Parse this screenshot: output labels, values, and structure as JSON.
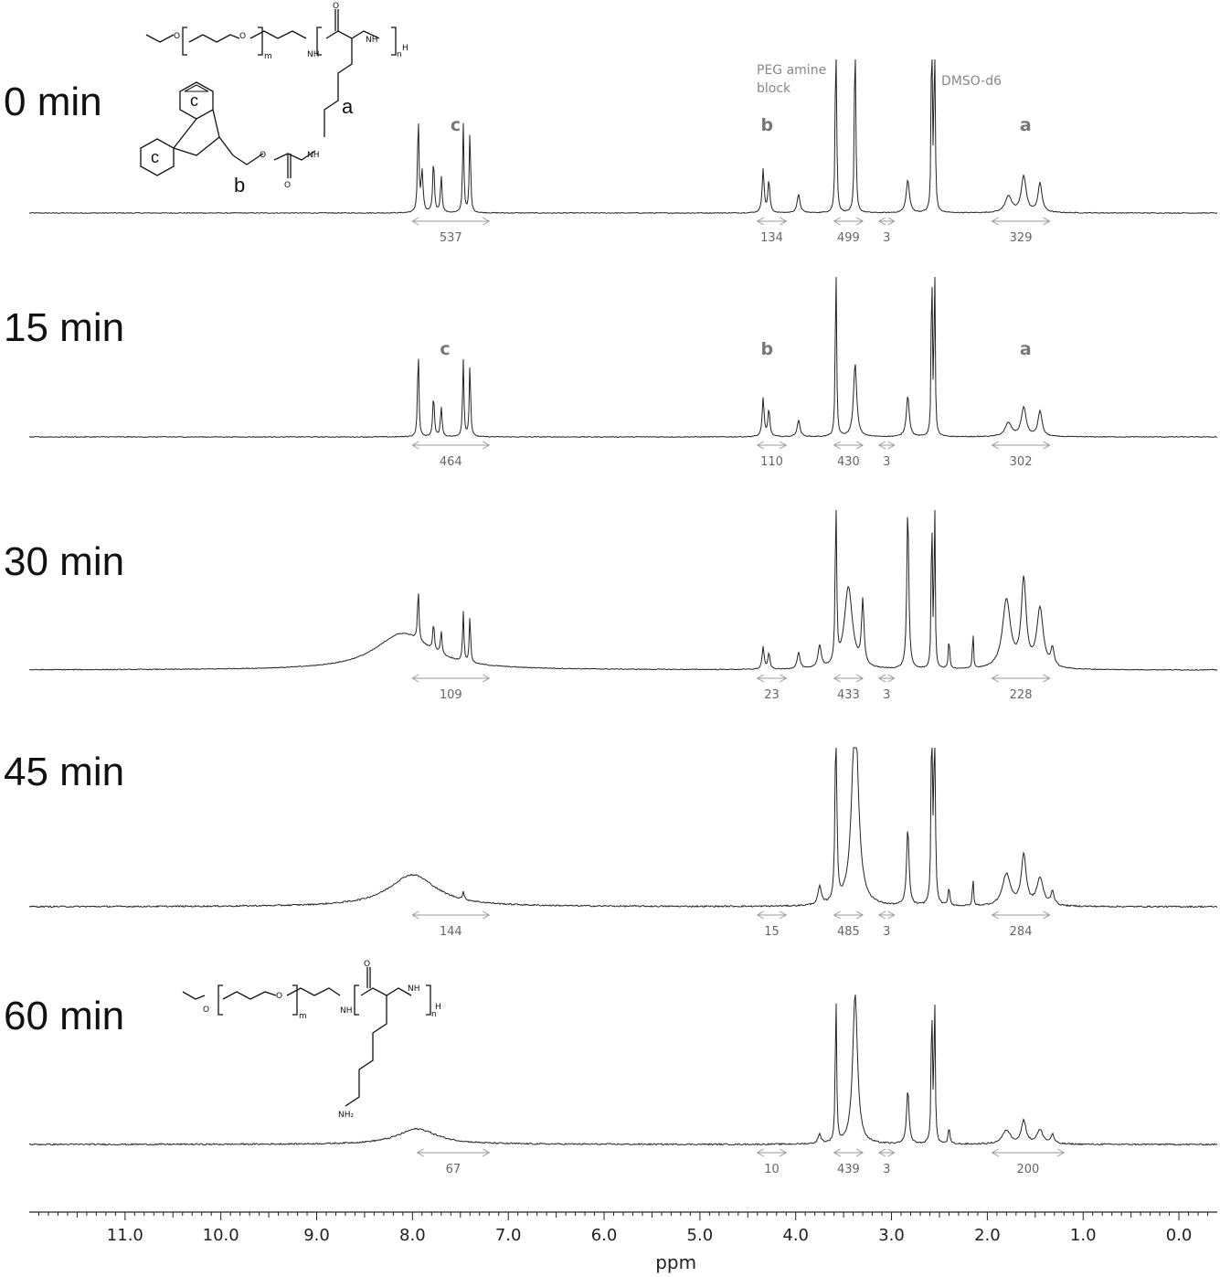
{
  "chart_data": {
    "type": "line",
    "xlabel": "ppm",
    "xlim": [
      12.0,
      -0.4
    ],
    "x_ticks": [
      "11.0",
      "10.0",
      "9.0",
      "8.0",
      "7.0",
      "6.0",
      "5.0",
      "4.0",
      "3.0",
      "2.0",
      "1.0",
      "0.0"
    ],
    "x_tick_values": [
      11,
      10,
      9,
      8,
      7,
      6,
      5,
      4,
      3,
      2,
      1,
      0
    ],
    "annotations": {
      "peg": "PEG amine",
      "peg2": "block",
      "dmso": "DMSO-d6"
    },
    "series": [
      {
        "name": "0 min",
        "peak_labels": [
          {
            "text": "c",
            "ppm": 7.55
          },
          {
            "text": "b",
            "ppm": 4.3
          },
          {
            "text": "a",
            "ppm": 1.6
          }
        ],
        "peaks": [
          [
            7.94,
            110,
            0.008
          ],
          [
            7.9,
            45,
            0.012
          ],
          [
            7.78,
            58,
            0.01
          ],
          [
            7.7,
            40,
            0.01
          ],
          [
            7.47,
            98,
            0.008
          ],
          [
            7.4,
            92,
            0.008
          ],
          [
            4.34,
            48,
            0.012
          ],
          [
            4.28,
            35,
            0.012
          ],
          [
            3.97,
            20,
            0.018
          ],
          [
            3.58,
            260,
            0.007
          ],
          [
            3.38,
            260,
            0.007
          ],
          [
            2.83,
            36,
            0.02
          ],
          [
            2.58,
            260,
            0.006
          ],
          [
            2.55,
            260,
            0.006
          ],
          [
            1.78,
            18,
            0.04
          ],
          [
            1.62,
            40,
            0.03
          ],
          [
            1.45,
            32,
            0.025
          ]
        ],
        "integrals": [
          {
            "from": 8.0,
            "to": 7.2,
            "label": "537"
          },
          {
            "from": 4.4,
            "to": 4.1,
            "label": "134"
          },
          {
            "from": 3.6,
            "to": 3.3,
            "label": "499"
          },
          {
            "from": 3.13,
            "to": 2.97,
            "label": "3"
          },
          {
            "from": 1.95,
            "to": 1.35,
            "label": "329"
          }
        ]
      },
      {
        "name": "15 min",
        "peak_labels": [
          {
            "text": "c",
            "ppm": 7.66
          },
          {
            "text": "b",
            "ppm": 4.3
          },
          {
            "text": "a",
            "ppm": 1.6
          }
        ],
        "peaks": [
          [
            7.94,
            100,
            0.008
          ],
          [
            7.78,
            45,
            0.01
          ],
          [
            7.7,
            33,
            0.01
          ],
          [
            7.47,
            85,
            0.008
          ],
          [
            7.4,
            82,
            0.008
          ],
          [
            4.34,
            42,
            0.012
          ],
          [
            4.28,
            30,
            0.012
          ],
          [
            3.97,
            18,
            0.018
          ],
          [
            3.58,
            220,
            0.007
          ],
          [
            3.38,
            80,
            0.02
          ],
          [
            2.83,
            45,
            0.018
          ],
          [
            2.58,
            220,
            0.006
          ],
          [
            2.55,
            220,
            0.006
          ],
          [
            1.78,
            15,
            0.04
          ],
          [
            1.62,
            32,
            0.03
          ],
          [
            1.45,
            28,
            0.025
          ]
        ],
        "integrals": [
          {
            "from": 8.0,
            "to": 7.2,
            "label": "464"
          },
          {
            "from": 4.4,
            "to": 4.1,
            "label": "110"
          },
          {
            "from": 3.6,
            "to": 3.3,
            "label": "430"
          },
          {
            "from": 3.13,
            "to": 2.97,
            "label": "3"
          },
          {
            "from": 1.95,
            "to": 1.35,
            "label": "302"
          }
        ]
      },
      {
        "name": "30 min",
        "peak_labels": [],
        "peaks": [
          [
            8.1,
            40,
            0.35
          ],
          [
            7.94,
            60,
            0.008
          ],
          [
            7.78,
            30,
            0.01
          ],
          [
            7.7,
            25,
            0.01
          ],
          [
            7.47,
            55,
            0.008
          ],
          [
            7.4,
            52,
            0.008
          ],
          [
            4.34,
            25,
            0.012
          ],
          [
            4.28,
            18,
            0.012
          ],
          [
            3.97,
            18,
            0.018
          ],
          [
            3.75,
            25,
            0.02
          ],
          [
            3.58,
            200,
            0.008
          ],
          [
            3.45,
            90,
            0.05
          ],
          [
            3.3,
            70,
            0.015
          ],
          [
            2.83,
            180,
            0.012
          ],
          [
            2.58,
            200,
            0.006
          ],
          [
            2.55,
            200,
            0.006
          ],
          [
            2.4,
            35,
            0.008
          ],
          [
            2.15,
            45,
            0.006
          ],
          [
            1.8,
            75,
            0.05
          ],
          [
            1.62,
            95,
            0.03
          ],
          [
            1.45,
            65,
            0.04
          ],
          [
            1.32,
            20,
            0.02
          ]
        ],
        "integrals": [
          {
            "from": 8.0,
            "to": 7.2,
            "label": "109"
          },
          {
            "from": 4.4,
            "to": 4.1,
            "label": "23"
          },
          {
            "from": 3.6,
            "to": 3.3,
            "label": "433"
          },
          {
            "from": 3.13,
            "to": 2.97,
            "label": "3"
          },
          {
            "from": 1.95,
            "to": 1.35,
            "label": "228"
          }
        ]
      },
      {
        "name": "45 min",
        "peak_labels": [],
        "peaks": [
          [
            8.0,
            35,
            0.3
          ],
          [
            7.47,
            8,
            0.01
          ],
          [
            3.75,
            20,
            0.02
          ],
          [
            3.58,
            220,
            0.01
          ],
          [
            3.38,
            220,
            0.04
          ],
          [
            2.83,
            85,
            0.015
          ],
          [
            2.58,
            220,
            0.008
          ],
          [
            2.55,
            220,
            0.008
          ],
          [
            2.4,
            20,
            0.01
          ],
          [
            2.15,
            35,
            0.006
          ],
          [
            1.8,
            35,
            0.05
          ],
          [
            1.62,
            55,
            0.03
          ],
          [
            1.45,
            30,
            0.04
          ],
          [
            1.32,
            15,
            0.02
          ]
        ],
        "integrals": [
          {
            "from": 8.0,
            "to": 7.2,
            "label": "144"
          },
          {
            "from": 4.4,
            "to": 4.1,
            "label": "15"
          },
          {
            "from": 3.6,
            "to": 3.3,
            "label": "485"
          },
          {
            "from": 3.13,
            "to": 2.97,
            "label": "3"
          },
          {
            "from": 1.95,
            "to": 1.35,
            "label": "284"
          }
        ]
      },
      {
        "name": "60 min",
        "peak_labels": [],
        "peaks": [
          [
            7.95,
            17,
            0.25
          ],
          [
            3.75,
            10,
            0.02
          ],
          [
            3.58,
            165,
            0.008
          ],
          [
            3.38,
            165,
            0.03
          ],
          [
            2.83,
            60,
            0.015
          ],
          [
            2.58,
            165,
            0.007
          ],
          [
            2.55,
            165,
            0.007
          ],
          [
            2.4,
            18,
            0.01
          ],
          [
            1.8,
            15,
            0.05
          ],
          [
            1.62,
            25,
            0.03
          ],
          [
            1.45,
            15,
            0.04
          ],
          [
            1.32,
            10,
            0.02
          ]
        ],
        "integrals": [
          {
            "from": 7.95,
            "to": 7.2,
            "label": "67"
          },
          {
            "from": 4.4,
            "to": 4.1,
            "label": "10"
          },
          {
            "from": 3.6,
            "to": 3.3,
            "label": "439"
          },
          {
            "from": 3.13,
            "to": 2.97,
            "label": "3"
          },
          {
            "from": 1.95,
            "to": 1.2,
            "label": "200"
          }
        ]
      }
    ]
  },
  "structure": {
    "top_labels": {
      "a": "a",
      "b": "b",
      "c1": "c",
      "c2": "c",
      "m": "m",
      "n": "n",
      "h": "H",
      "nh": "NH",
      "o": "O"
    },
    "bottom_labels": {
      "m": "m",
      "n": "n",
      "h": "H",
      "nh": "NH",
      "nh2": "NH₂",
      "o": "O"
    }
  }
}
